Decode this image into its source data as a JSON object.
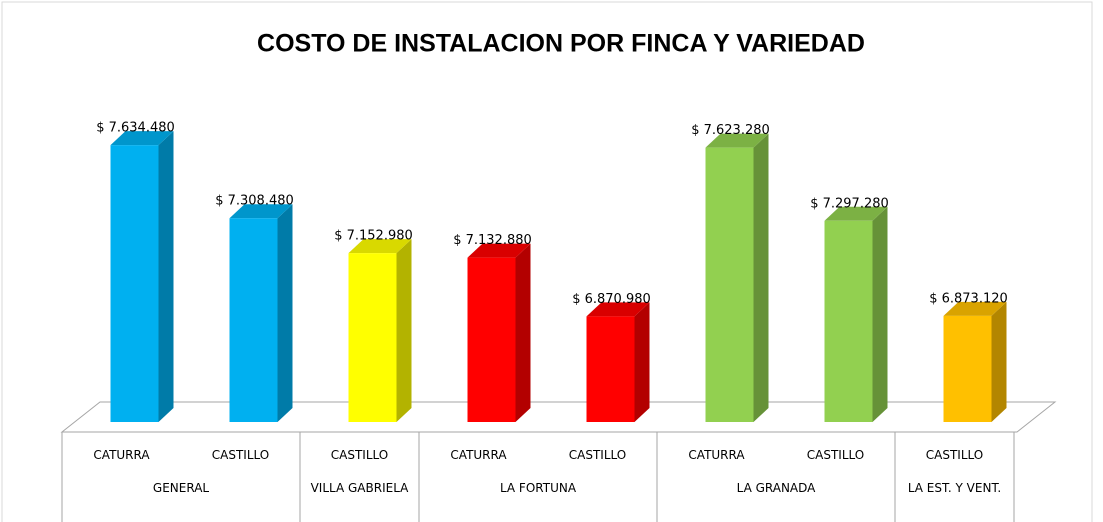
{
  "chart_data": {
    "type": "bar3d",
    "title": "COSTO DE INSTALACION POR FINCA Y VARIEDAD",
    "groups": [
      {
        "name": "GENERAL",
        "items": [
          "CATURRA",
          "CASTILLO"
        ]
      },
      {
        "name": "VILLA GABRIELA",
        "items": [
          "CASTILLO"
        ]
      },
      {
        "name": "LA FORTUNA",
        "items": [
          "CATURRA",
          "CASTILLO"
        ]
      },
      {
        "name": "LA GRANADA",
        "items": [
          "CATURRA",
          "CASTILLO"
        ]
      },
      {
        "name": "LA EST. Y VENT.",
        "items": [
          "CASTILLO"
        ]
      }
    ],
    "values": [
      7634480,
      7308480,
      7152980,
      7132880,
      6870980,
      7623280,
      7297280,
      6873120
    ],
    "value_labels": [
      "$ 7.634.480",
      "$ 7.308.480",
      "$ 7.152.980",
      "$ 7.132.880",
      "$ 6.870.980",
      "$ 7.623.280",
      "$ 7.297.280",
      "$ 6.873.120"
    ],
    "colors": [
      "#00b0f0",
      "#00b0f0",
      "#ffff00",
      "#ff0000",
      "#ff0000",
      "#92d050",
      "#92d050",
      "#ffc000"
    ],
    "ylim": [
      6400000,
      7800000
    ]
  }
}
